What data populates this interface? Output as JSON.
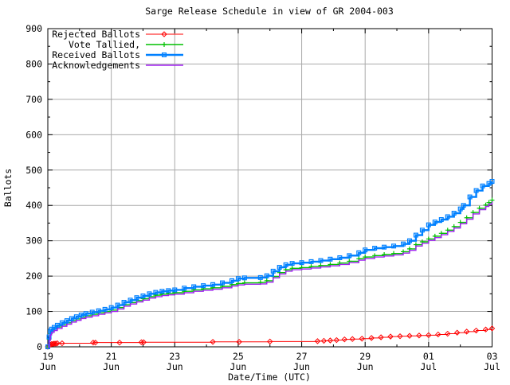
{
  "figure": {
    "title": "Sarge Release Schedule in view of GR 2004-003",
    "background": "#ffffff",
    "border_color": "#000000",
    "grid_color": "#aaaaaa"
  },
  "chart_data": {
    "type": "line",
    "title": "Sarge Release Schedule in view of GR 2004-003",
    "xlabel": "Date/Time (UTC)",
    "ylabel": "Ballots",
    "ylim": [
      0,
      900
    ],
    "xlim_days": [
      0,
      14
    ],
    "grid": true,
    "legend_position": "top-left",
    "y_ticks": [
      0,
      100,
      200,
      300,
      400,
      500,
      600,
      700,
      800,
      900
    ],
    "y_minor_step": 50,
    "x_ticks": [
      {
        "day": 0,
        "line1": "19",
        "line2": "Jun"
      },
      {
        "day": 2,
        "line1": "21",
        "line2": "Jun"
      },
      {
        "day": 4,
        "line1": "23",
        "line2": "Jun"
      },
      {
        "day": 6,
        "line1": "25",
        "line2": "Jun"
      },
      {
        "day": 8,
        "line1": "27",
        "line2": "Jun"
      },
      {
        "day": 10,
        "line1": "29",
        "line2": "Jun"
      },
      {
        "day": 12,
        "line1": "01",
        "line2": "Jul"
      },
      {
        "day": 14,
        "line1": "03",
        "line2": "Jul"
      }
    ],
    "x_minor_days": [
      1,
      3,
      5,
      7,
      9,
      11,
      13
    ],
    "series": [
      {
        "name": "Rejected Ballots",
        "color": "#ff0000",
        "marker": "diamond",
        "points": [
          [
            0,
            0
          ],
          [
            0.05,
            4
          ],
          [
            0.08,
            6
          ],
          [
            0.12,
            8
          ],
          [
            0.16,
            8
          ],
          [
            0.2,
            9
          ],
          [
            0.25,
            9
          ],
          [
            0.3,
            10
          ],
          [
            0.45,
            10
          ],
          [
            1.43,
            12
          ],
          [
            1.5,
            12
          ],
          [
            2.26,
            12
          ],
          [
            2.95,
            13
          ],
          [
            3.02,
            13
          ],
          [
            5.2,
            14
          ],
          [
            6.03,
            14
          ],
          [
            7.0,
            15
          ],
          [
            8.5,
            16
          ],
          [
            8.7,
            17
          ],
          [
            8.9,
            18
          ],
          [
            9.1,
            19
          ],
          [
            9.35,
            21
          ],
          [
            9.6,
            22
          ],
          [
            9.9,
            23
          ],
          [
            10.2,
            25
          ],
          [
            10.5,
            27
          ],
          [
            10.8,
            29
          ],
          [
            11.1,
            30
          ],
          [
            11.4,
            31
          ],
          [
            11.7,
            32
          ],
          [
            12.0,
            33
          ],
          [
            12.3,
            35
          ],
          [
            12.6,
            37
          ],
          [
            12.9,
            40
          ],
          [
            13.2,
            43
          ],
          [
            13.5,
            46
          ],
          [
            13.8,
            49
          ],
          [
            14.0,
            52
          ]
        ]
      },
      {
        "name": "Vote Tallied,",
        "color": "#00c000",
        "marker": "plus",
        "points": [
          [
            0,
            0
          ],
          [
            0.04,
            22
          ],
          [
            0.08,
            38
          ],
          [
            0.12,
            45
          ],
          [
            0.2,
            50
          ],
          [
            0.3,
            56
          ],
          [
            0.45,
            62
          ],
          [
            0.6,
            68
          ],
          [
            0.75,
            74
          ],
          [
            0.9,
            79
          ],
          [
            1.05,
            84
          ],
          [
            1.2,
            88
          ],
          [
            1.4,
            92
          ],
          [
            1.6,
            96
          ],
          [
            1.8,
            100
          ],
          [
            2.0,
            104
          ],
          [
            2.2,
            111
          ],
          [
            2.4,
            119
          ],
          [
            2.6,
            125
          ],
          [
            2.8,
            131
          ],
          [
            3.0,
            136
          ],
          [
            3.2,
            142
          ],
          [
            3.4,
            146
          ],
          [
            3.6,
            149
          ],
          [
            3.8,
            151
          ],
          [
            4.0,
            153
          ],
          [
            4.3,
            157
          ],
          [
            4.6,
            161
          ],
          [
            4.9,
            164
          ],
          [
            5.2,
            167
          ],
          [
            5.5,
            171
          ],
          [
            5.8,
            176
          ],
          [
            6.0,
            179
          ],
          [
            6.2,
            181
          ],
          [
            6.7,
            182
          ],
          [
            6.9,
            187
          ],
          [
            7.1,
            199
          ],
          [
            7.3,
            210
          ],
          [
            7.5,
            218
          ],
          [
            7.7,
            222
          ],
          [
            8.0,
            224
          ],
          [
            8.3,
            227
          ],
          [
            8.6,
            230
          ],
          [
            8.9,
            233
          ],
          [
            9.2,
            237
          ],
          [
            9.5,
            242
          ],
          [
            9.8,
            249
          ],
          [
            10.0,
            254
          ],
          [
            10.3,
            258
          ],
          [
            10.6,
            261
          ],
          [
            10.9,
            264
          ],
          [
            11.2,
            269
          ],
          [
            11.4,
            277
          ],
          [
            11.6,
            289
          ],
          [
            11.8,
            297
          ],
          [
            12.0,
            305
          ],
          [
            12.2,
            313
          ],
          [
            12.4,
            321
          ],
          [
            12.6,
            330
          ],
          [
            12.8,
            340
          ],
          [
            13.0,
            352
          ],
          [
            13.2,
            365
          ],
          [
            13.4,
            380
          ],
          [
            13.6,
            392
          ],
          [
            13.8,
            401
          ],
          [
            13.9,
            408
          ],
          [
            14.0,
            415
          ]
        ]
      },
      {
        "name": "Received Ballots",
        "color": "#0080ff",
        "marker": "square",
        "points": [
          [
            0,
            0
          ],
          [
            0.04,
            28
          ],
          [
            0.08,
            44
          ],
          [
            0.12,
            50
          ],
          [
            0.2,
            55
          ],
          [
            0.3,
            61
          ],
          [
            0.45,
            68
          ],
          [
            0.6,
            74
          ],
          [
            0.75,
            80
          ],
          [
            0.9,
            85
          ],
          [
            1.05,
            90
          ],
          [
            1.2,
            94
          ],
          [
            1.4,
            98
          ],
          [
            1.6,
            102
          ],
          [
            1.8,
            106
          ],
          [
            2.0,
            111
          ],
          [
            2.2,
            118
          ],
          [
            2.4,
            126
          ],
          [
            2.6,
            132
          ],
          [
            2.8,
            139
          ],
          [
            3.0,
            144
          ],
          [
            3.2,
            150
          ],
          [
            3.4,
            154
          ],
          [
            3.6,
            157
          ],
          [
            3.8,
            159
          ],
          [
            4.0,
            161
          ],
          [
            4.3,
            166
          ],
          [
            4.6,
            170
          ],
          [
            4.9,
            173
          ],
          [
            5.2,
            176
          ],
          [
            5.5,
            181
          ],
          [
            5.8,
            187
          ],
          [
            6.0,
            193
          ],
          [
            6.2,
            195
          ],
          [
            6.7,
            196
          ],
          [
            6.9,
            201
          ],
          [
            7.1,
            214
          ],
          [
            7.3,
            225
          ],
          [
            7.5,
            232
          ],
          [
            7.7,
            236
          ],
          [
            8.0,
            238
          ],
          [
            8.3,
            241
          ],
          [
            8.6,
            244
          ],
          [
            8.9,
            248
          ],
          [
            9.2,
            252
          ],
          [
            9.5,
            258
          ],
          [
            9.8,
            266
          ],
          [
            10.0,
            274
          ],
          [
            10.3,
            279
          ],
          [
            10.6,
            282
          ],
          [
            10.9,
            285
          ],
          [
            11.2,
            291
          ],
          [
            11.4,
            300
          ],
          [
            11.6,
            316
          ],
          [
            11.8,
            330
          ],
          [
            12.0,
            345
          ],
          [
            12.2,
            353
          ],
          [
            12.4,
            360
          ],
          [
            12.6,
            368
          ],
          [
            12.8,
            378
          ],
          [
            13.0,
            390
          ],
          [
            13.1,
            400
          ],
          [
            13.3,
            424
          ],
          [
            13.5,
            442
          ],
          [
            13.7,
            455
          ],
          [
            13.9,
            462
          ],
          [
            14.0,
            468
          ]
        ]
      },
      {
        "name": "Acknowledgements",
        "color": "#a020f0",
        "marker": "none",
        "points": [
          [
            0,
            0
          ],
          [
            0.04,
            18
          ],
          [
            0.08,
            34
          ],
          [
            0.12,
            41
          ],
          [
            0.2,
            46
          ],
          [
            0.3,
            52
          ],
          [
            0.45,
            58
          ],
          [
            0.6,
            64
          ],
          [
            0.75,
            70
          ],
          [
            0.9,
            75
          ],
          [
            1.05,
            80
          ],
          [
            1.2,
            84
          ],
          [
            1.4,
            88
          ],
          [
            1.6,
            92
          ],
          [
            1.8,
            96
          ],
          [
            2.0,
            100
          ],
          [
            2.2,
            107
          ],
          [
            2.4,
            115
          ],
          [
            2.6,
            121
          ],
          [
            2.8,
            127
          ],
          [
            3.0,
            132
          ],
          [
            3.2,
            138
          ],
          [
            3.4,
            142
          ],
          [
            3.6,
            145
          ],
          [
            3.8,
            147
          ],
          [
            4.0,
            149
          ],
          [
            4.3,
            153
          ],
          [
            4.6,
            157
          ],
          [
            4.9,
            160
          ],
          [
            5.2,
            163
          ],
          [
            5.5,
            167
          ],
          [
            5.8,
            172
          ],
          [
            6.0,
            175
          ],
          [
            6.2,
            177
          ],
          [
            6.7,
            178
          ],
          [
            6.9,
            183
          ],
          [
            7.1,
            195
          ],
          [
            7.3,
            206
          ],
          [
            7.5,
            214
          ],
          [
            7.7,
            218
          ],
          [
            8.0,
            220
          ],
          [
            8.3,
            223
          ],
          [
            8.6,
            226
          ],
          [
            8.9,
            229
          ],
          [
            9.2,
            233
          ],
          [
            9.5,
            238
          ],
          [
            9.8,
            245
          ],
          [
            10.0,
            250
          ],
          [
            10.3,
            254
          ],
          [
            10.6,
            257
          ],
          [
            10.9,
            260
          ],
          [
            11.2,
            265
          ],
          [
            11.4,
            273
          ],
          [
            11.6,
            285
          ],
          [
            11.8,
            293
          ],
          [
            12.0,
            301
          ],
          [
            12.2,
            309
          ],
          [
            12.4,
            317
          ],
          [
            12.6,
            326
          ],
          [
            12.8,
            336
          ],
          [
            13.0,
            348
          ],
          [
            13.2,
            361
          ],
          [
            13.4,
            376
          ],
          [
            13.6,
            388
          ],
          [
            13.8,
            397
          ],
          [
            13.9,
            404
          ],
          [
            14.0,
            411
          ]
        ]
      }
    ]
  }
}
